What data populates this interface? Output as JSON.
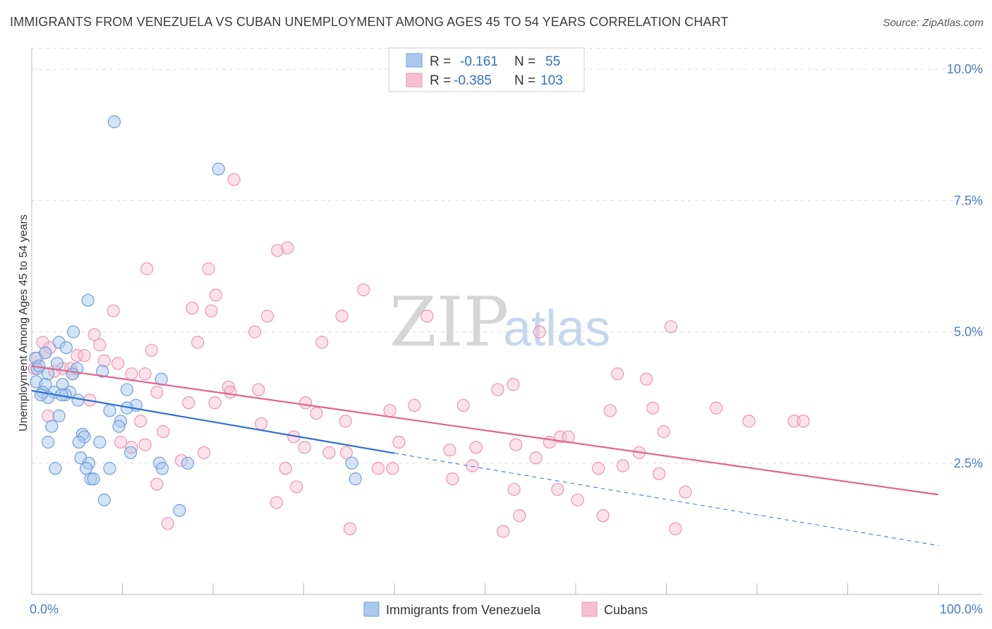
{
  "title": "IMMIGRANTS FROM VENEZUELA VS CUBAN UNEMPLOYMENT AMONG AGES 45 TO 54 YEARS CORRELATION CHART",
  "source": "Source: ZipAtlas.com",
  "watermark": {
    "zip": "ZIP",
    "atlas": "atlas"
  },
  "legend": {
    "r_label": "R =",
    "n_label": "N =",
    "rows": [
      {
        "r": "-0.161",
        "n": "55"
      },
      {
        "r": "-0.385",
        "n": "103"
      }
    ]
  },
  "colors": {
    "venezuela_fill": "#aac8ee",
    "venezuela_stroke": "#6f9fdc",
    "venezuela_line": "#2f6fd1",
    "cubans_fill": "#f6bfd0",
    "cubans_stroke": "#ee93b1",
    "cubans_line": "#e0648f",
    "grid": "#dddddd",
    "tick_text": "#4a7cc9"
  },
  "chart_data": {
    "type": "scatter",
    "title": "IMMIGRANTS FROM VENEZUELA VS CUBAN UNEMPLOYMENT AMONG AGES 45 TO 54 YEARS CORRELATION CHART",
    "xlabel": "",
    "ylabel": "Unemployment Among Ages 45 to 54 years",
    "xlim": [
      0,
      100
    ],
    "ylim": [
      0,
      10.5
    ],
    "x_ticks": [
      "0.0%",
      "100.0%"
    ],
    "y_ticks": [
      {
        "value": 2.5,
        "label": "2.5%"
      },
      {
        "value": 5.0,
        "label": "5.0%"
      },
      {
        "value": 7.5,
        "label": "7.5%"
      },
      {
        "value": 10.0,
        "label": "10.0%"
      }
    ],
    "grid": "horizontal dashed",
    "legend_position": "top-center",
    "series": [
      {
        "name": "Immigrants from Venezuela",
        "r": -0.161,
        "n": 55,
        "trend": {
          "x0": 0,
          "y0": 3.88,
          "x1": 40,
          "y1": 2.69,
          "dashed_to_x": 100,
          "dashed_to_y": 0.93
        },
        "points": [
          [
            9.1,
            9.0
          ],
          [
            20.6,
            8.1
          ],
          [
            6.2,
            5.6
          ],
          [
            4.6,
            5.0
          ],
          [
            3.0,
            4.8
          ],
          [
            3.8,
            4.7
          ],
          [
            0.4,
            4.5
          ],
          [
            1.5,
            4.6
          ],
          [
            2.8,
            4.4
          ],
          [
            0.6,
            4.3
          ],
          [
            0.8,
            4.35
          ],
          [
            5.0,
            4.3
          ],
          [
            7.8,
            4.25
          ],
          [
            1.8,
            4.2
          ],
          [
            4.5,
            4.2
          ],
          [
            14.3,
            4.1
          ],
          [
            0.5,
            4.05
          ],
          [
            1.5,
            4.0
          ],
          [
            3.4,
            4.0
          ],
          [
            1.2,
            3.85
          ],
          [
            2.5,
            3.85
          ],
          [
            4.2,
            3.85
          ],
          [
            10.5,
            3.9
          ],
          [
            3.7,
            3.8
          ],
          [
            1.8,
            3.75
          ],
          [
            1.0,
            3.8
          ],
          [
            5.1,
            3.7
          ],
          [
            3.3,
            3.8
          ],
          [
            11.5,
            3.6
          ],
          [
            10.5,
            3.55
          ],
          [
            8.6,
            3.5
          ],
          [
            3.0,
            3.4
          ],
          [
            9.8,
            3.3
          ],
          [
            2.2,
            3.2
          ],
          [
            9.6,
            3.2
          ],
          [
            5.6,
            3.05
          ],
          [
            5.8,
            3.0
          ],
          [
            1.8,
            2.9
          ],
          [
            5.2,
            2.9
          ],
          [
            7.5,
            2.9
          ],
          [
            10.9,
            2.7
          ],
          [
            5.4,
            2.6
          ],
          [
            6.3,
            2.5
          ],
          [
            14.1,
            2.5
          ],
          [
            17.2,
            2.5
          ],
          [
            2.6,
            2.4
          ],
          [
            6.0,
            2.4
          ],
          [
            8.6,
            2.4
          ],
          [
            14.4,
            2.4
          ],
          [
            35.3,
            2.5
          ],
          [
            6.5,
            2.2
          ],
          [
            6.8,
            2.2
          ],
          [
            35.7,
            2.2
          ],
          [
            8.0,
            1.8
          ],
          [
            16.3,
            1.6
          ]
        ]
      },
      {
        "name": "Cubans",
        "r": -0.385,
        "n": 103,
        "trend": {
          "x0": 0,
          "y0": 4.35,
          "x1": 100,
          "y1": 1.9
        },
        "points": [
          [
            22.3,
            7.9
          ],
          [
            27.1,
            6.55
          ],
          [
            28.2,
            6.6
          ],
          [
            12.7,
            6.2
          ],
          [
            19.5,
            6.2
          ],
          [
            36.6,
            5.8
          ],
          [
            20.3,
            5.7
          ],
          [
            9.0,
            5.4
          ],
          [
            17.7,
            5.45
          ],
          [
            19.8,
            5.4
          ],
          [
            26.0,
            5.3
          ],
          [
            34.2,
            5.3
          ],
          [
            43.6,
            5.3
          ],
          [
            70.5,
            5.1
          ],
          [
            24.6,
            5.0
          ],
          [
            56.0,
            5.0
          ],
          [
            6.9,
            4.95
          ],
          [
            1.2,
            4.8
          ],
          [
            18.3,
            4.8
          ],
          [
            32.0,
            4.8
          ],
          [
            7.5,
            4.75
          ],
          [
            2.0,
            4.7
          ],
          [
            13.2,
            4.65
          ],
          [
            1.5,
            4.6
          ],
          [
            5.0,
            4.55
          ],
          [
            5.8,
            4.55
          ],
          [
            0.6,
            4.5
          ],
          [
            8.0,
            4.45
          ],
          [
            9.5,
            4.4
          ],
          [
            3.4,
            4.3
          ],
          [
            4.3,
            4.3
          ],
          [
            0.3,
            4.3
          ],
          [
            2.5,
            4.25
          ],
          [
            4.5,
            4.2
          ],
          [
            11.0,
            4.2
          ],
          [
            12.5,
            4.2
          ],
          [
            64.6,
            4.2
          ],
          [
            67.8,
            4.1
          ],
          [
            25.0,
            3.9
          ],
          [
            21.7,
            3.95
          ],
          [
            13.8,
            3.85
          ],
          [
            21.9,
            3.85
          ],
          [
            53.1,
            4.0
          ],
          [
            51.4,
            3.9
          ],
          [
            6.4,
            3.7
          ],
          [
            17.3,
            3.65
          ],
          [
            30.2,
            3.65
          ],
          [
            20.2,
            3.65
          ],
          [
            42.2,
            3.6
          ],
          [
            47.6,
            3.6
          ],
          [
            31.4,
            3.45
          ],
          [
            68.5,
            3.55
          ],
          [
            75.5,
            3.55
          ],
          [
            63.8,
            3.5
          ],
          [
            39.5,
            3.5
          ],
          [
            1.8,
            3.4
          ],
          [
            12.0,
            3.3
          ],
          [
            25.3,
            3.25
          ],
          [
            34.6,
            3.3
          ],
          [
            79.1,
            3.3
          ],
          [
            84.1,
            3.3
          ],
          [
            85.1,
            3.3
          ],
          [
            14.5,
            3.1
          ],
          [
            28.9,
            3.0
          ],
          [
            58.3,
            3.0
          ],
          [
            59.2,
            3.0
          ],
          [
            69.7,
            3.1
          ],
          [
            9.8,
            2.9
          ],
          [
            40.5,
            2.9
          ],
          [
            30.1,
            2.8
          ],
          [
            53.4,
            2.85
          ],
          [
            46.1,
            2.75
          ],
          [
            57.1,
            2.9
          ],
          [
            11.0,
            2.8
          ],
          [
            12.5,
            2.85
          ],
          [
            19.0,
            2.7
          ],
          [
            32.8,
            2.7
          ],
          [
            34.7,
            2.7
          ],
          [
            49.0,
            2.8
          ],
          [
            67.0,
            2.7
          ],
          [
            62.5,
            2.4
          ],
          [
            16.5,
            2.55
          ],
          [
            55.6,
            2.6
          ],
          [
            48.6,
            2.45
          ],
          [
            65.2,
            2.45
          ],
          [
            69.2,
            2.3
          ],
          [
            38.2,
            2.4
          ],
          [
            39.8,
            2.4
          ],
          [
            46.4,
            2.2
          ],
          [
            28.0,
            2.4
          ],
          [
            13.8,
            2.1
          ],
          [
            29.2,
            2.05
          ],
          [
            53.2,
            2.0
          ],
          [
            58.0,
            2.0
          ],
          [
            72.1,
            1.95
          ],
          [
            27.0,
            1.75
          ],
          [
            60.2,
            1.8
          ],
          [
            63.0,
            1.5
          ],
          [
            53.8,
            1.5
          ],
          [
            15.0,
            1.35
          ],
          [
            35.1,
            1.25
          ],
          [
            52.0,
            1.2
          ],
          [
            71.0,
            1.25
          ]
        ]
      }
    ]
  }
}
